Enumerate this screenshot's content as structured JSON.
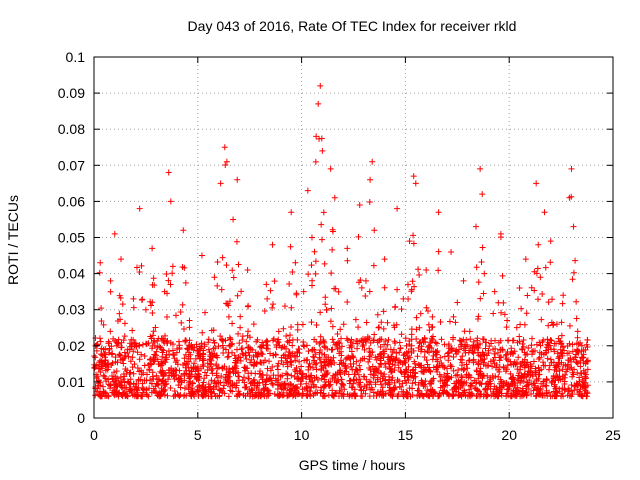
{
  "chart_data": {
    "type": "scatter",
    "title": "Day 043 of 2016, Rate Of TEC Index for receiver rkld",
    "xlabel": "GPS time / hours",
    "ylabel": "ROTI / TECUs",
    "xlim": [
      0,
      25
    ],
    "ylim": [
      0,
      0.1
    ],
    "x_ticks": [
      "0",
      "5",
      "10",
      "15",
      "20",
      "25"
    ],
    "y_ticks": [
      "0",
      "0.01",
      "0.02",
      "0.03",
      "0.04",
      "0.05",
      "0.06",
      "0.07",
      "0.08",
      "0.09",
      "0.1"
    ],
    "grid": true,
    "marker": "plus",
    "color": "#ff0000",
    "series": [
      {
        "x": [
          0.1,
          0.3,
          0.5,
          0.8,
          1.0,
          1.1,
          1.3,
          1.6,
          1.9,
          2.2,
          2.3,
          2.5,
          2.8,
          3.1,
          3.4,
          3.6,
          3.7,
          3.8,
          4.0,
          4.3,
          4.6,
          4.9,
          5.2,
          5.5,
          5.8,
          6.1,
          6.3,
          6.4,
          6.5,
          6.7,
          6.9,
          7.1,
          7.4,
          7.7,
          8.0,
          8.3,
          8.6,
          8.9,
          9.2,
          9.5,
          9.7,
          9.9,
          10.1,
          10.3,
          10.5,
          10.7,
          10.8,
          10.9,
          11.0,
          11.2,
          11.4,
          11.6,
          11.9,
          12.2,
          12.5,
          12.8,
          13.1,
          13.3,
          13.4,
          13.5,
          13.7,
          14.0,
          14.3,
          14.6,
          14.9,
          15.2,
          15.4,
          15.5,
          15.7,
          16.0,
          16.3,
          16.6,
          16.9,
          17.2,
          17.5,
          17.8,
          18.1,
          18.4,
          18.6,
          18.7,
          18.8,
          19.0,
          19.3,
          19.6,
          19.9,
          20.2,
          20.5,
          20.8,
          21.1,
          21.3,
          21.4,
          21.5,
          21.7,
          22.0,
          22.3,
          22.6,
          22.9,
          23.0,
          23.1,
          23.3,
          23.5,
          23.7
        ],
        "y": [
          0.012,
          0.043,
          0.015,
          0.038,
          0.051,
          0.02,
          0.044,
          0.018,
          0.033,
          0.058,
          0.012,
          0.03,
          0.047,
          0.022,
          0.035,
          0.068,
          0.06,
          0.042,
          0.016,
          0.052,
          0.027,
          0.014,
          0.045,
          0.021,
          0.039,
          0.065,
          0.075,
          0.071,
          0.028,
          0.055,
          0.066,
          0.019,
          0.041,
          0.026,
          0.013,
          0.037,
          0.048,
          0.024,
          0.031,
          0.057,
          0.043,
          0.018,
          0.035,
          0.063,
          0.05,
          0.078,
          0.087,
          0.092,
          0.074,
          0.03,
          0.069,
          0.061,
          0.022,
          0.047,
          0.015,
          0.059,
          0.038,
          0.066,
          0.071,
          0.052,
          0.025,
          0.044,
          0.019,
          0.058,
          0.033,
          0.049,
          0.067,
          0.065,
          0.021,
          0.041,
          0.028,
          0.057,
          0.017,
          0.046,
          0.032,
          0.038,
          0.024,
          0.053,
          0.069,
          0.062,
          0.04,
          0.018,
          0.035,
          0.051,
          0.027,
          0.015,
          0.036,
          0.044,
          0.022,
          0.065,
          0.048,
          0.039,
          0.057,
          0.049,
          0.026,
          0.034,
          0.061,
          0.069,
          0.053,
          0.024,
          0.02,
          0.012
        ]
      }
    ]
  }
}
